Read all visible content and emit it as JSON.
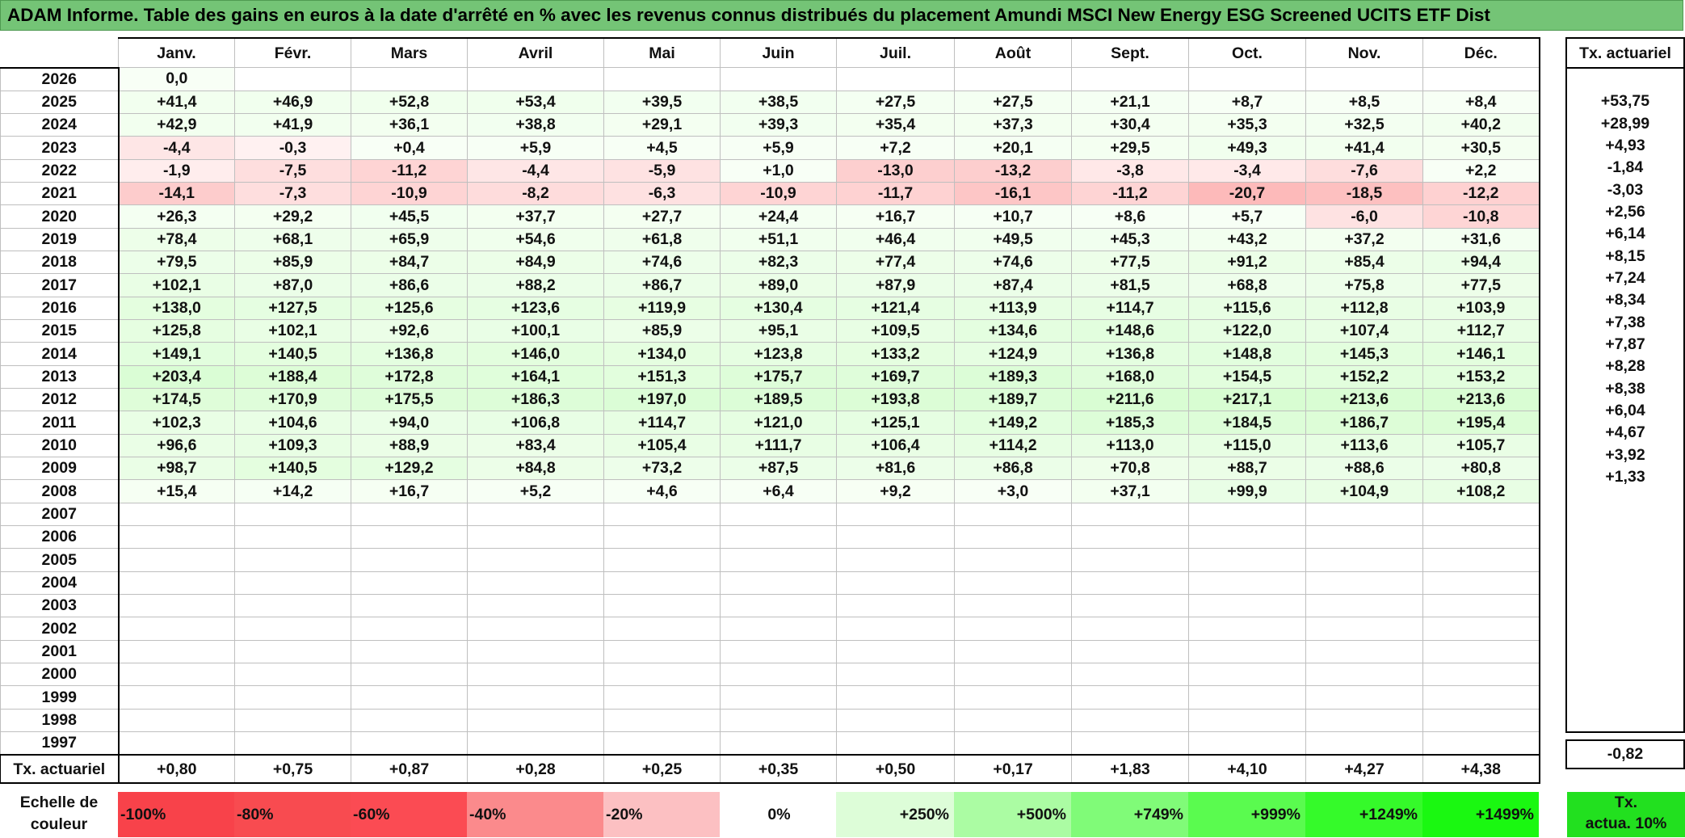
{
  "title": "ADAM Informe. Table des gains en euros à la date d'arrêté en % avec les revenus connus distribués du placement Amundi MSCI New Energy ESG Screened UCITS ETF Dist",
  "months": [
    "Janv.",
    "Févr.",
    "Mars",
    "Avril",
    "Mai",
    "Juin",
    "Juil.",
    "Août",
    "Sept.",
    "Oct.",
    "Nov.",
    "Déc."
  ],
  "side_header": "Tx. actuariel",
  "rows": [
    {
      "year": "2026",
      "values": [
        "0,0",
        "",
        "",
        "",
        "",
        "",
        "",
        "",
        "",
        "",
        "",
        ""
      ],
      "tx": ""
    },
    {
      "year": "2025",
      "values": [
        "+41,4",
        "+46,9",
        "+52,8",
        "+53,4",
        "+39,5",
        "+38,5",
        "+27,5",
        "+27,5",
        "+21,1",
        "+8,7",
        "+8,5",
        "+8,4"
      ],
      "tx": "+53,75"
    },
    {
      "year": "2024",
      "values": [
        "+42,9",
        "+41,9",
        "+36,1",
        "+38,8",
        "+29,1",
        "+39,3",
        "+35,4",
        "+37,3",
        "+30,4",
        "+35,3",
        "+32,5",
        "+40,2"
      ],
      "tx": "+28,99"
    },
    {
      "year": "2023",
      "values": [
        "-4,4",
        "-0,3",
        "+0,4",
        "+5,9",
        "+4,5",
        "+5,9",
        "+7,2",
        "+20,1",
        "+29,5",
        "+49,3",
        "+41,4",
        "+30,5"
      ],
      "tx": "+4,93"
    },
    {
      "year": "2022",
      "values": [
        "-1,9",
        "-7,5",
        "-11,2",
        "-4,4",
        "-5,9",
        "+1,0",
        "-13,0",
        "-13,2",
        "-3,8",
        "-3,4",
        "-7,6",
        "+2,2"
      ],
      "tx": "-1,84"
    },
    {
      "year": "2021",
      "values": [
        "-14,1",
        "-7,3",
        "-10,9",
        "-8,2",
        "-6,3",
        "-10,9",
        "-11,7",
        "-16,1",
        "-11,2",
        "-20,7",
        "-18,5",
        "-12,2"
      ],
      "tx": "-3,03"
    },
    {
      "year": "2020",
      "values": [
        "+26,3",
        "+29,2",
        "+45,5",
        "+37,7",
        "+27,7",
        "+24,4",
        "+16,7",
        "+10,7",
        "+8,6",
        "+5,7",
        "-6,0",
        "-10,8"
      ],
      "tx": "+2,56"
    },
    {
      "year": "2019",
      "values": [
        "+78,4",
        "+68,1",
        "+65,9",
        "+54,6",
        "+61,8",
        "+51,1",
        "+46,4",
        "+49,5",
        "+45,3",
        "+43,2",
        "+37,2",
        "+31,6"
      ],
      "tx": "+6,14"
    },
    {
      "year": "2018",
      "values": [
        "+79,5",
        "+85,9",
        "+84,7",
        "+84,9",
        "+74,6",
        "+82,3",
        "+77,4",
        "+74,6",
        "+77,5",
        "+91,2",
        "+85,4",
        "+94,4"
      ],
      "tx": "+8,15"
    },
    {
      "year": "2017",
      "values": [
        "+102,1",
        "+87,0",
        "+86,6",
        "+88,2",
        "+86,7",
        "+89,0",
        "+87,9",
        "+87,4",
        "+81,5",
        "+68,8",
        "+75,8",
        "+77,5"
      ],
      "tx": "+7,24"
    },
    {
      "year": "2016",
      "values": [
        "+138,0",
        "+127,5",
        "+125,6",
        "+123,6",
        "+119,9",
        "+130,4",
        "+121,4",
        "+113,9",
        "+114,7",
        "+115,6",
        "+112,8",
        "+103,9"
      ],
      "tx": "+8,34"
    },
    {
      "year": "2015",
      "values": [
        "+125,8",
        "+102,1",
        "+92,6",
        "+100,1",
        "+85,9",
        "+95,1",
        "+109,5",
        "+134,6",
        "+148,6",
        "+122,0",
        "+107,4",
        "+112,7"
      ],
      "tx": "+7,38"
    },
    {
      "year": "2014",
      "values": [
        "+149,1",
        "+140,5",
        "+136,8",
        "+146,0",
        "+134,0",
        "+123,8",
        "+133,2",
        "+124,9",
        "+136,8",
        "+148,8",
        "+145,3",
        "+146,1"
      ],
      "tx": "+7,87"
    },
    {
      "year": "2013",
      "values": [
        "+203,4",
        "+188,4",
        "+172,8",
        "+164,1",
        "+151,3",
        "+175,7",
        "+169,7",
        "+189,3",
        "+168,0",
        "+154,5",
        "+152,2",
        "+153,2"
      ],
      "tx": "+8,28"
    },
    {
      "year": "2012",
      "values": [
        "+174,5",
        "+170,9",
        "+175,5",
        "+186,3",
        "+197,0",
        "+189,5",
        "+193,8",
        "+189,7",
        "+211,6",
        "+217,1",
        "+213,6",
        "+213,6"
      ],
      "tx": "+8,38"
    },
    {
      "year": "2011",
      "values": [
        "+102,3",
        "+104,6",
        "+94,0",
        "+106,8",
        "+114,7",
        "+121,0",
        "+125,1",
        "+149,2",
        "+185,3",
        "+184,5",
        "+186,7",
        "+195,4"
      ],
      "tx": "+6,04"
    },
    {
      "year": "2010",
      "values": [
        "+96,6",
        "+109,3",
        "+88,9",
        "+83,4",
        "+105,4",
        "+111,7",
        "+106,4",
        "+114,2",
        "+113,0",
        "+115,0",
        "+113,6",
        "+105,7"
      ],
      "tx": "+4,67"
    },
    {
      "year": "2009",
      "values": [
        "+98,7",
        "+140,5",
        "+129,2",
        "+84,8",
        "+73,2",
        "+87,5",
        "+81,6",
        "+86,8",
        "+70,8",
        "+88,7",
        "+88,6",
        "+80,8"
      ],
      "tx": "+3,92"
    },
    {
      "year": "2008",
      "values": [
        "+15,4",
        "+14,2",
        "+16,7",
        "+5,2",
        "+4,6",
        "+6,4",
        "+9,2",
        "+3,0",
        "+37,1",
        "+99,9",
        "+104,9",
        "+108,2"
      ],
      "tx": "+1,33"
    },
    {
      "year": "2007",
      "values": [
        "",
        "",
        "",
        "",
        "",
        "",
        "",
        "",
        "",
        "",
        "",
        ""
      ],
      "tx": ""
    },
    {
      "year": "2006",
      "values": [
        "",
        "",
        "",
        "",
        "",
        "",
        "",
        "",
        "",
        "",
        "",
        ""
      ],
      "tx": ""
    },
    {
      "year": "2005",
      "values": [
        "",
        "",
        "",
        "",
        "",
        "",
        "",
        "",
        "",
        "",
        "",
        ""
      ],
      "tx": ""
    },
    {
      "year": "2004",
      "values": [
        "",
        "",
        "",
        "",
        "",
        "",
        "",
        "",
        "",
        "",
        "",
        ""
      ],
      "tx": ""
    },
    {
      "year": "2003",
      "values": [
        "",
        "",
        "",
        "",
        "",
        "",
        "",
        "",
        "",
        "",
        "",
        ""
      ],
      "tx": ""
    },
    {
      "year": "2002",
      "values": [
        "",
        "",
        "",
        "",
        "",
        "",
        "",
        "",
        "",
        "",
        "",
        ""
      ],
      "tx": ""
    },
    {
      "year": "2001",
      "values": [
        "",
        "",
        "",
        "",
        "",
        "",
        "",
        "",
        "",
        "",
        "",
        ""
      ],
      "tx": ""
    },
    {
      "year": "2000",
      "values": [
        "",
        "",
        "",
        "",
        "",
        "",
        "",
        "",
        "",
        "",
        "",
        ""
      ],
      "tx": ""
    },
    {
      "year": "1999",
      "values": [
        "",
        "",
        "",
        "",
        "",
        "",
        "",
        "",
        "",
        "",
        "",
        ""
      ],
      "tx": ""
    },
    {
      "year": "1998",
      "values": [
        "",
        "",
        "",
        "",
        "",
        "",
        "",
        "",
        "",
        "",
        "",
        ""
      ],
      "tx": ""
    },
    {
      "year": "1997",
      "values": [
        "",
        "",
        "",
        "",
        "",
        "",
        "",
        "",
        "",
        "",
        "",
        ""
      ],
      "tx": ""
    }
  ],
  "tx_row": {
    "label": "Tx. actuariel",
    "values": [
      "+0,80",
      "+0,75",
      "+0,87",
      "+0,28",
      "+0,25",
      "+0,35",
      "+0,50",
      "+0,17",
      "+1,83",
      "+4,10",
      "+4,27",
      "+4,38"
    ],
    "total": "-0,82"
  },
  "scale": {
    "label_line1": "Echelle de",
    "label_line2": "couleur",
    "items": [
      {
        "text": "-100%",
        "color": "#f8424a"
      },
      {
        "text": "-80%",
        "color": "#f84b50"
      },
      {
        "text": "-60%",
        "color": "#fb4b53"
      },
      {
        "text": "-40%",
        "color": "#fb8a8c"
      },
      {
        "text": "-20%",
        "color": "#fcc0c2"
      },
      {
        "text": "0%",
        "color": "#ffffff"
      },
      {
        "text": "+250%",
        "color": "#ddfdd8"
      },
      {
        "text": "+500%",
        "color": "#abfca3"
      },
      {
        "text": "+749%",
        "color": "#80fb78"
      },
      {
        "text": "+999%",
        "color": "#5afb4f"
      },
      {
        "text": "+1249%",
        "color": "#35fa2a"
      },
      {
        "text": "+1499%",
        "color": "#1af811"
      }
    ],
    "tx10_line1": "Tx.",
    "tx10_line2": "actua. 10%",
    "tx10_color": "#22e01f"
  }
}
